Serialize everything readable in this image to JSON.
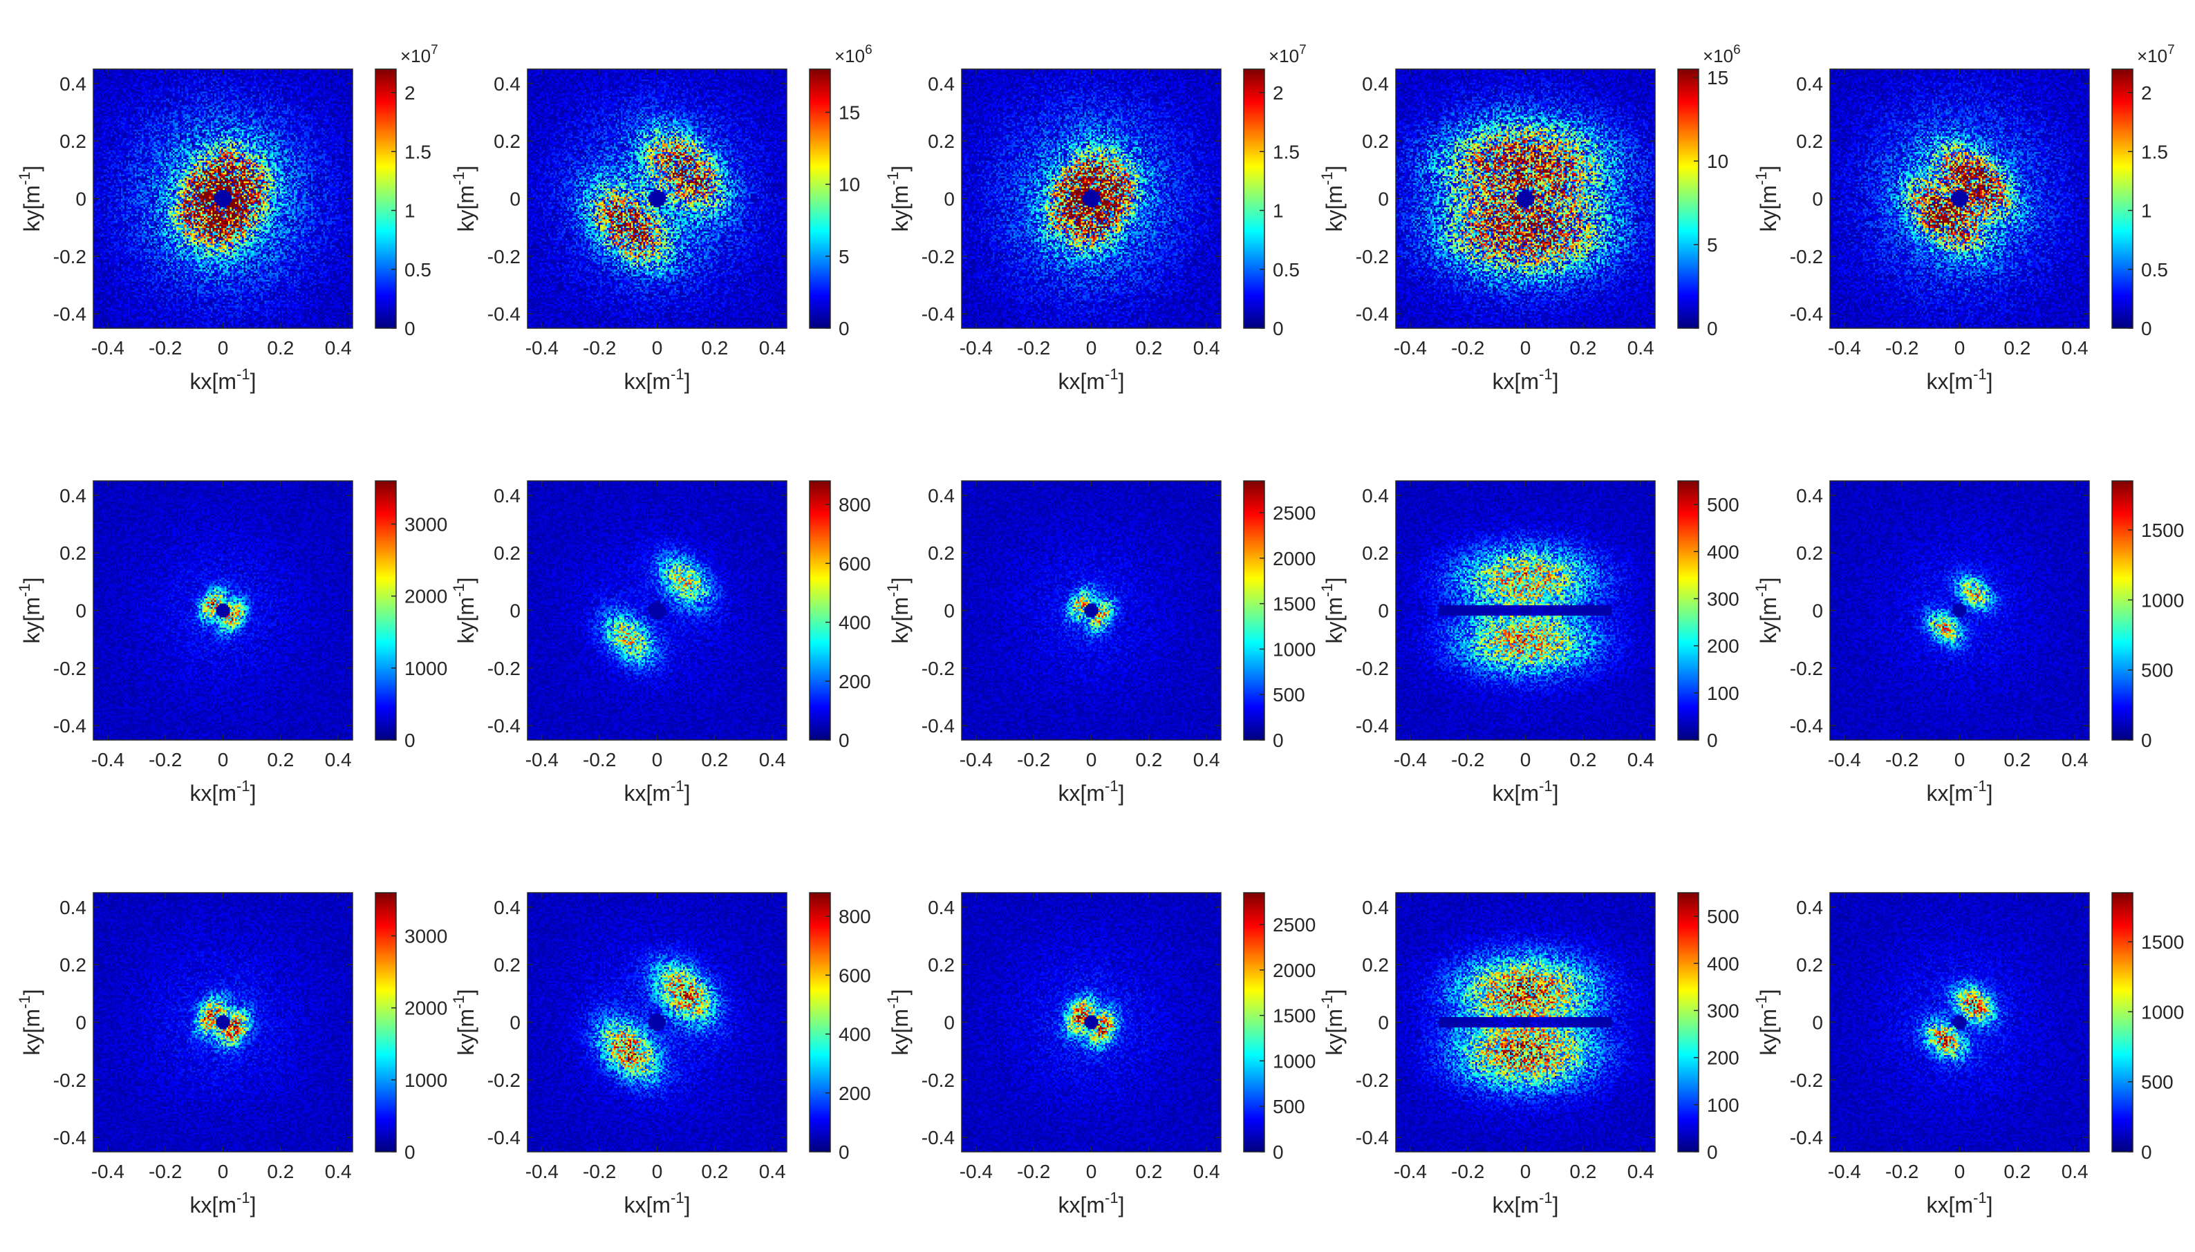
{
  "figure": {
    "rows": 3,
    "cols": 5,
    "colormap": "jet",
    "colormap_stops": [
      "#00008f",
      "#0000ff",
      "#00ffff",
      "#ffff00",
      "#ff0000",
      "#800000"
    ],
    "background_color": "#0011c8"
  },
  "chart_data": [
    {
      "type": "heatmap",
      "xlabel": "kx[m",
      "ylabel": "ky[m",
      "label_exponent": "-1",
      "xlim": [
        -0.45,
        0.45
      ],
      "ylim": [
        -0.45,
        0.45
      ],
      "x_ticks": [
        "-0.4",
        "-0.2",
        "0",
        "0.2",
        "0.4"
      ],
      "y_ticks": [
        "-0.4",
        "-0.2",
        "0",
        "0.2",
        "0.4"
      ],
      "clim": [
        0,
        22000000.0
      ],
      "colorbar_ticks": [
        {
          "value": 0,
          "label": "0"
        },
        {
          "value": 5000000.0,
          "label": "0.5"
        },
        {
          "value": 10000000.0,
          "label": "1"
        },
        {
          "value": 15000000.0,
          "label": "1.5"
        },
        {
          "value": 20000000.0,
          "label": "2"
        }
      ],
      "colorbar_multiplier": "×10",
      "colorbar_exponent": "7",
      "pattern": {
        "lobe_angle_deg": -30,
        "separation": 0.05,
        "spread": 0.09,
        "lobe_width": 0.05,
        "peak": 0.9,
        "noise": 0.35,
        "hole_radius": 0.03,
        "horizontal_gap": false,
        "blob": false
      }
    },
    {
      "type": "heatmap",
      "xlabel": "kx[m",
      "ylabel": "ky[m",
      "label_exponent": "-1",
      "xlim": [
        -0.45,
        0.45
      ],
      "ylim": [
        -0.45,
        0.45
      ],
      "x_ticks": [
        "-0.4",
        "-0.2",
        "0",
        "0.2",
        "0.4"
      ],
      "y_ticks": [
        "-0.4",
        "-0.2",
        "0",
        "0.2",
        "0.4"
      ],
      "clim": [
        0,
        18000000.0
      ],
      "colorbar_ticks": [
        {
          "value": 0,
          "label": "0"
        },
        {
          "value": 5000000.0,
          "label": "5"
        },
        {
          "value": 10000000.0,
          "label": "10"
        },
        {
          "value": 15000000.0,
          "label": "15"
        }
      ],
      "colorbar_multiplier": "×10",
      "colorbar_exponent": "6",
      "pattern": {
        "lobe_angle_deg": 45,
        "separation": 0.14,
        "spread": 0.1,
        "lobe_width": 0.06,
        "peak": 0.6,
        "noise": 0.35,
        "hole_radius": 0.03,
        "horizontal_gap": false,
        "blob": false
      }
    },
    {
      "type": "heatmap",
      "xlabel": "kx[m",
      "ylabel": "ky[m",
      "label_exponent": "-1",
      "xlim": [
        -0.45,
        0.45
      ],
      "ylim": [
        -0.45,
        0.45
      ],
      "x_ticks": [
        "-0.4",
        "-0.2",
        "0",
        "0.2",
        "0.4"
      ],
      "y_ticks": [
        "-0.4",
        "-0.2",
        "0",
        "0.2",
        "0.4"
      ],
      "clim": [
        0,
        22000000.0
      ],
      "colorbar_ticks": [
        {
          "value": 0,
          "label": "0"
        },
        {
          "value": 5000000.0,
          "label": "0.5"
        },
        {
          "value": 10000000.0,
          "label": "1"
        },
        {
          "value": 15000000.0,
          "label": "1.5"
        },
        {
          "value": 20000000.0,
          "label": "2"
        }
      ],
      "colorbar_multiplier": "×10",
      "colorbar_exponent": "7",
      "pattern": {
        "lobe_angle_deg": -30,
        "separation": 0.05,
        "spread": 0.09,
        "lobe_width": 0.05,
        "peak": 0.75,
        "noise": 0.35,
        "hole_radius": 0.03,
        "horizontal_gap": false,
        "blob": false
      }
    },
    {
      "type": "heatmap",
      "xlabel": "kx[m",
      "ylabel": "ky[m",
      "label_exponent": "-1",
      "xlim": [
        -0.45,
        0.45
      ],
      "ylim": [
        -0.45,
        0.45
      ],
      "x_ticks": [
        "-0.4",
        "-0.2",
        "0",
        "0.2",
        "0.4"
      ],
      "y_ticks": [
        "-0.4",
        "-0.2",
        "0",
        "0.2",
        "0.4"
      ],
      "clim": [
        0,
        15500000.0
      ],
      "colorbar_ticks": [
        {
          "value": 0,
          "label": "0"
        },
        {
          "value": 5000000.0,
          "label": "5"
        },
        {
          "value": 10000000.0,
          "label": "10"
        },
        {
          "value": 15000000.0,
          "label": "15"
        }
      ],
      "colorbar_multiplier": "×10",
      "colorbar_exponent": "6",
      "pattern": {
        "lobe_angle_deg": 90,
        "separation": 0.12,
        "spread": 0.18,
        "lobe_width": 0.09,
        "peak": 0.55,
        "noise": 0.4,
        "hole_radius": 0.03,
        "horizontal_gap": false,
        "blob": false
      }
    },
    {
      "type": "heatmap",
      "xlabel": "kx[m",
      "ylabel": "ky[m",
      "label_exponent": "-1",
      "xlim": [
        -0.45,
        0.45
      ],
      "ylim": [
        -0.45,
        0.45
      ],
      "x_ticks": [
        "-0.4",
        "-0.2",
        "0",
        "0.2",
        "0.4"
      ],
      "y_ticks": [
        "-0.4",
        "-0.2",
        "0",
        "0.2",
        "0.4"
      ],
      "clim": [
        0,
        22000000.0
      ],
      "colorbar_ticks": [
        {
          "value": 0,
          "label": "0"
        },
        {
          "value": 5000000.0,
          "label": "0.5"
        },
        {
          "value": 10000000.0,
          "label": "1"
        },
        {
          "value": 15000000.0,
          "label": "1.5"
        },
        {
          "value": 20000000.0,
          "label": "2"
        }
      ],
      "colorbar_multiplier": "×10",
      "colorbar_exponent": "7",
      "pattern": {
        "lobe_angle_deg": 50,
        "separation": 0.08,
        "spread": 0.09,
        "lobe_width": 0.05,
        "peak": 0.7,
        "noise": 0.35,
        "hole_radius": 0.03,
        "horizontal_gap": false,
        "blob": false
      }
    },
    {
      "type": "heatmap",
      "xlabel": "kx[m",
      "ylabel": "ky[m",
      "label_exponent": "-1",
      "xlim": [
        -0.45,
        0.45
      ],
      "ylim": [
        -0.45,
        0.45
      ],
      "x_ticks": [
        "-0.4",
        "-0.2",
        "0",
        "0.2",
        "0.4"
      ],
      "y_ticks": [
        "-0.4",
        "-0.2",
        "0",
        "0.2",
        "0.4"
      ],
      "clim": [
        0,
        3600
      ],
      "colorbar_ticks": [
        {
          "value": 0,
          "label": "0"
        },
        {
          "value": 1000,
          "label": "1000"
        },
        {
          "value": 2000,
          "label": "2000"
        },
        {
          "value": 3000,
          "label": "3000"
        }
      ],
      "colorbar_multiplier": "",
      "colorbar_exponent": "",
      "pattern": {
        "lobe_angle_deg": -30,
        "separation": 0.04,
        "spread": 0.04,
        "lobe_width": 0.025,
        "peak": 0.55,
        "noise": 0.02,
        "hole_radius": 0.025,
        "horizontal_gap": false,
        "blob": false
      }
    },
    {
      "type": "heatmap",
      "xlabel": "kx[m",
      "ylabel": "ky[m",
      "label_exponent": "-1",
      "xlim": [
        -0.45,
        0.45
      ],
      "ylim": [
        -0.45,
        0.45
      ],
      "x_ticks": [
        "-0.4",
        "-0.2",
        "0",
        "0.2",
        "0.4"
      ],
      "y_ticks": [
        "-0.4",
        "-0.2",
        "0",
        "0.2",
        "0.4"
      ],
      "clim": [
        0,
        880
      ],
      "colorbar_ticks": [
        {
          "value": 0,
          "label": "0"
        },
        {
          "value": 200,
          "label": "200"
        },
        {
          "value": 400,
          "label": "400"
        },
        {
          "value": 600,
          "label": "600"
        },
        {
          "value": 800,
          "label": "800"
        }
      ],
      "colorbar_multiplier": "",
      "colorbar_exponent": "",
      "pattern": {
        "lobe_angle_deg": 45,
        "separation": 0.14,
        "spread": 0.07,
        "lobe_width": 0.045,
        "peak": 0.45,
        "noise": 0.03,
        "hole_radius": 0.03,
        "horizontal_gap": false,
        "blob": true
      }
    },
    {
      "type": "heatmap",
      "xlabel": "kx[m",
      "ylabel": "ky[m",
      "label_exponent": "-1",
      "xlim": [
        -0.45,
        0.45
      ],
      "ylim": [
        -0.45,
        0.45
      ],
      "x_ticks": [
        "-0.4",
        "-0.2",
        "0",
        "0.2",
        "0.4"
      ],
      "y_ticks": [
        "-0.4",
        "-0.2",
        "0",
        "0.2",
        "0.4"
      ],
      "clim": [
        0,
        2850
      ],
      "colorbar_ticks": [
        {
          "value": 0,
          "label": "0"
        },
        {
          "value": 500,
          "label": "500"
        },
        {
          "value": 1000,
          "label": "1000"
        },
        {
          "value": 1500,
          "label": "1500"
        },
        {
          "value": 2000,
          "label": "2000"
        },
        {
          "value": 2500,
          "label": "2500"
        }
      ],
      "colorbar_multiplier": "",
      "colorbar_exponent": "",
      "pattern": {
        "lobe_angle_deg": -30,
        "separation": 0.04,
        "spread": 0.04,
        "lobe_width": 0.025,
        "peak": 0.5,
        "noise": 0.02,
        "hole_radius": 0.025,
        "horizontal_gap": false,
        "blob": false
      }
    },
    {
      "type": "heatmap",
      "xlabel": "kx[m",
      "ylabel": "ky[m",
      "label_exponent": "-1",
      "xlim": [
        -0.45,
        0.45
      ],
      "ylim": [
        -0.45,
        0.45
      ],
      "x_ticks": [
        "-0.4",
        "-0.2",
        "0",
        "0.2",
        "0.4"
      ],
      "y_ticks": [
        "-0.4",
        "-0.2",
        "0",
        "0.2",
        "0.4"
      ],
      "clim": [
        0,
        550
      ],
      "colorbar_ticks": [
        {
          "value": 0,
          "label": "0"
        },
        {
          "value": 100,
          "label": "100"
        },
        {
          "value": 200,
          "label": "200"
        },
        {
          "value": 300,
          "label": "300"
        },
        {
          "value": 400,
          "label": "400"
        },
        {
          "value": 500,
          "label": "500"
        }
      ],
      "colorbar_multiplier": "",
      "colorbar_exponent": "",
      "pattern": {
        "lobe_angle_deg": 90,
        "separation": 0.11,
        "spread": 0.15,
        "lobe_width": 0.07,
        "peak": 0.5,
        "noise": 0.06,
        "hole_radius": 0.02,
        "horizontal_gap": true,
        "blob": false
      }
    },
    {
      "type": "heatmap",
      "xlabel": "kx[m",
      "ylabel": "ky[m",
      "label_exponent": "-1",
      "xlim": [
        -0.45,
        0.45
      ],
      "ylim": [
        -0.45,
        0.45
      ],
      "x_ticks": [
        "-0.4",
        "-0.2",
        "0",
        "0.2",
        "0.4"
      ],
      "y_ticks": [
        "-0.4",
        "-0.2",
        "0",
        "0.2",
        "0.4"
      ],
      "clim": [
        0,
        1850
      ],
      "colorbar_ticks": [
        {
          "value": 0,
          "label": "0"
        },
        {
          "value": 500,
          "label": "500"
        },
        {
          "value": 1000,
          "label": "1000"
        },
        {
          "value": 1500,
          "label": "1500"
        }
      ],
      "colorbar_multiplier": "",
      "colorbar_exponent": "",
      "pattern": {
        "lobe_angle_deg": 50,
        "separation": 0.08,
        "spread": 0.045,
        "lobe_width": 0.03,
        "peak": 0.5,
        "noise": 0.02,
        "hole_radius": 0.025,
        "horizontal_gap": false,
        "blob": false
      }
    },
    {
      "type": "heatmap",
      "xlabel": "kx[m",
      "ylabel": "ky[m",
      "label_exponent": "-1",
      "xlim": [
        -0.45,
        0.45
      ],
      "ylim": [
        -0.45,
        0.45
      ],
      "x_ticks": [
        "-0.4",
        "-0.2",
        "0",
        "0.2",
        "0.4"
      ],
      "y_ticks": [
        "-0.4",
        "-0.2",
        "0",
        "0.2",
        "0.4"
      ],
      "clim": [
        0,
        3600
      ],
      "colorbar_ticks": [
        {
          "value": 0,
          "label": "0"
        },
        {
          "value": 1000,
          "label": "1000"
        },
        {
          "value": 2000,
          "label": "2000"
        },
        {
          "value": 3000,
          "label": "3000"
        }
      ],
      "colorbar_multiplier": "",
      "colorbar_exponent": "",
      "pattern": {
        "lobe_angle_deg": -30,
        "separation": 0.045,
        "spread": 0.045,
        "lobe_width": 0.03,
        "peak": 0.6,
        "noise": 0.03,
        "hole_radius": 0.025,
        "horizontal_gap": false,
        "blob": false
      }
    },
    {
      "type": "heatmap",
      "xlabel": "kx[m",
      "ylabel": "ky[m",
      "label_exponent": "-1",
      "xlim": [
        -0.45,
        0.45
      ],
      "ylim": [
        -0.45,
        0.45
      ],
      "x_ticks": [
        "-0.4",
        "-0.2",
        "0",
        "0.2",
        "0.4"
      ],
      "y_ticks": [
        "-0.4",
        "-0.2",
        "0",
        "0.2",
        "0.4"
      ],
      "clim": [
        0,
        880
      ],
      "colorbar_ticks": [
        {
          "value": 0,
          "label": "0"
        },
        {
          "value": 200,
          "label": "200"
        },
        {
          "value": 400,
          "label": "400"
        },
        {
          "value": 600,
          "label": "600"
        },
        {
          "value": 800,
          "label": "800"
        }
      ],
      "colorbar_multiplier": "",
      "colorbar_exponent": "",
      "pattern": {
        "lobe_angle_deg": 45,
        "separation": 0.14,
        "spread": 0.08,
        "lobe_width": 0.05,
        "peak": 0.6,
        "noise": 0.05,
        "hole_radius": 0.03,
        "horizontal_gap": false,
        "blob": true
      }
    },
    {
      "type": "heatmap",
      "xlabel": "kx[m",
      "ylabel": "ky[m",
      "label_exponent": "-1",
      "xlim": [
        -0.45,
        0.45
      ],
      "ylim": [
        -0.45,
        0.45
      ],
      "x_ticks": [
        "-0.4",
        "-0.2",
        "0",
        "0.2",
        "0.4"
      ],
      "y_ticks": [
        "-0.4",
        "-0.2",
        "0",
        "0.2",
        "0.4"
      ],
      "clim": [
        0,
        2850
      ],
      "colorbar_ticks": [
        {
          "value": 0,
          "label": "0"
        },
        {
          "value": 500,
          "label": "500"
        },
        {
          "value": 1000,
          "label": "1000"
        },
        {
          "value": 1500,
          "label": "1500"
        },
        {
          "value": 2000,
          "label": "2000"
        },
        {
          "value": 2500,
          "label": "2500"
        }
      ],
      "colorbar_multiplier": "",
      "colorbar_exponent": "",
      "pattern": {
        "lobe_angle_deg": -30,
        "separation": 0.045,
        "spread": 0.045,
        "lobe_width": 0.03,
        "peak": 0.6,
        "noise": 0.03,
        "hole_radius": 0.025,
        "horizontal_gap": false,
        "blob": false
      }
    },
    {
      "type": "heatmap",
      "xlabel": "kx[m",
      "ylabel": "ky[m",
      "label_exponent": "-1",
      "xlim": [
        -0.45,
        0.45
      ],
      "ylim": [
        -0.45,
        0.45
      ],
      "x_ticks": [
        "-0.4",
        "-0.2",
        "0",
        "0.2",
        "0.4"
      ],
      "y_ticks": [
        "-0.4",
        "-0.2",
        "0",
        "0.2",
        "0.4"
      ],
      "clim": [
        0,
        550
      ],
      "colorbar_ticks": [
        {
          "value": 0,
          "label": "0"
        },
        {
          "value": 100,
          "label": "100"
        },
        {
          "value": 200,
          "label": "200"
        },
        {
          "value": 300,
          "label": "300"
        },
        {
          "value": 400,
          "label": "400"
        },
        {
          "value": 500,
          "label": "500"
        }
      ],
      "colorbar_multiplier": "",
      "colorbar_exponent": "",
      "pattern": {
        "lobe_angle_deg": 90,
        "separation": 0.11,
        "spread": 0.15,
        "lobe_width": 0.075,
        "peak": 0.6,
        "noise": 0.07,
        "hole_radius": 0.02,
        "horizontal_gap": true,
        "blob": false
      }
    },
    {
      "type": "heatmap",
      "xlabel": "kx[m",
      "ylabel": "ky[m",
      "label_exponent": "-1",
      "xlim": [
        -0.45,
        0.45
      ],
      "ylim": [
        -0.45,
        0.45
      ],
      "x_ticks": [
        "-0.4",
        "-0.2",
        "0",
        "0.2",
        "0.4"
      ],
      "y_ticks": [
        "-0.4",
        "-0.2",
        "0",
        "0.2",
        "0.4"
      ],
      "clim": [
        0,
        1850
      ],
      "colorbar_ticks": [
        {
          "value": 0,
          "label": "0"
        },
        {
          "value": 500,
          "label": "500"
        },
        {
          "value": 1000,
          "label": "1000"
        },
        {
          "value": 1500,
          "label": "1500"
        }
      ],
      "colorbar_multiplier": "",
      "colorbar_exponent": "",
      "pattern": {
        "lobe_angle_deg": 50,
        "separation": 0.08,
        "spread": 0.05,
        "lobe_width": 0.035,
        "peak": 0.6,
        "noise": 0.03,
        "hole_radius": 0.025,
        "horizontal_gap": false,
        "blob": false
      }
    }
  ]
}
